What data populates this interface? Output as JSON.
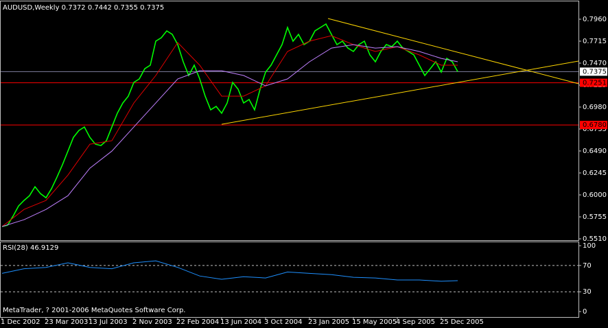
{
  "chart_data": [
    {
      "type": "line",
      "title": "AUDUSD,Weekly  0.7372 0.7442 0.7355 0.7375",
      "xlim": [
        -0.75,
        210
      ],
      "ylim": [
        0.5495,
        0.8159
      ],
      "yticks": [
        {
          "value": 0.796,
          "label": "0.7960"
        },
        0.7715,
        {
          "value": 0.747,
          "label": "0.7470"
        },
        0.7225,
        {
          "value": 0.698,
          "label": "0.6980"
        },
        0.6735,
        {
          "value": 0.649,
          "label": "0.6490"
        },
        0.6245,
        {
          "value": 0.6,
          "label": "0.6000"
        },
        0.5755,
        {
          "value": 0.551,
          "label": "0.5510"
        }
      ],
      "series": [
        {
          "color": "#00ff00",
          "x": [
            0,
            2,
            4,
            6,
            8,
            10,
            12,
            14,
            16,
            18,
            20,
            22,
            24,
            26,
            28,
            30,
            32,
            34,
            36,
            38,
            40,
            42,
            44,
            46,
            48,
            50,
            52,
            54,
            56,
            58,
            60,
            62,
            64,
            66,
            68,
            70,
            72,
            74,
            76,
            78,
            80,
            82,
            84,
            86,
            88,
            90,
            92,
            94,
            96,
            98,
            100,
            102,
            104,
            106,
            108,
            110,
            112,
            114,
            116,
            118,
            120,
            122,
            124,
            126,
            128,
            130,
            132,
            134,
            136,
            138,
            140,
            142,
            144,
            146,
            148,
            150,
            152,
            154,
            156,
            158,
            160,
            162,
            164,
            166
          ],
          "values": [
            0.5647,
            0.5662,
            0.5762,
            0.5876,
            0.5938,
            0.5991,
            0.6091,
            0.6014,
            0.5968,
            0.6068,
            0.6198,
            0.6336,
            0.6489,
            0.6642,
            0.6719,
            0.6757,
            0.6642,
            0.6566,
            0.6551,
            0.6604,
            0.6757,
            0.6911,
            0.7025,
            0.7102,
            0.7255,
            0.7294,
            0.7408,
            0.7447,
            0.7715,
            0.7753,
            0.783,
            0.7791,
            0.7677,
            0.7485,
            0.7332,
            0.7447,
            0.7294,
            0.7102,
            0.6949,
            0.6987,
            0.6911,
            0.7025,
            0.7255,
            0.7179,
            0.7025,
            0.7064,
            0.6949,
            0.7179,
            0.737,
            0.7447,
            0.7562,
            0.7677,
            0.7868,
            0.7715,
            0.7791,
            0.7677,
            0.7715,
            0.783,
            0.7868,
            0.7906,
            0.7791,
            0.7677,
            0.7715,
            0.7638,
            0.76,
            0.7677,
            0.7715,
            0.7562,
            0.7485,
            0.76,
            0.7677,
            0.7654,
            0.7715,
            0.7638,
            0.76,
            0.7562,
            0.7447,
            0.7332,
            0.7408,
            0.7485,
            0.737,
            0.7523,
            0.7485,
            0.7375
          ]
        },
        {
          "color": "#e00000",
          "x": [
            0,
            8,
            16,
            24,
            32,
            40,
            48,
            56,
            64,
            72,
            80,
            88,
            96,
            104,
            112,
            120,
            128,
            136,
            144,
            152,
            160,
            166
          ],
          "values": [
            0.5647,
            0.5838,
            0.5938,
            0.6221,
            0.6566,
            0.6604,
            0.7025,
            0.7332,
            0.77,
            0.7447,
            0.7102,
            0.7102,
            0.7217,
            0.76,
            0.7715,
            0.7776,
            0.7677,
            0.76,
            0.7654,
            0.7562,
            0.7447,
            0.7447
          ]
        },
        {
          "color": "#c080ff",
          "x": [
            0,
            8,
            16,
            24,
            32,
            40,
            48,
            56,
            64,
            72,
            80,
            88,
            96,
            104,
            112,
            120,
            128,
            136,
            144,
            152,
            160,
            166
          ],
          "values": [
            0.5647,
            0.5723,
            0.5838,
            0.5991,
            0.6298,
            0.6489,
            0.6757,
            0.7025,
            0.7294,
            0.7385,
            0.7385,
            0.7332,
            0.7217,
            0.7294,
            0.7485,
            0.7638,
            0.7677,
            0.7638,
            0.7654,
            0.76,
            0.7523,
            0.7485
          ]
        }
      ],
      "trendlines": [
        {
          "color": "#ffd700",
          "x": [
            118.75,
            210
          ],
          "y": [
            0.7968,
            0.724
          ]
        },
        {
          "color": "#ffd700",
          "x": [
            80,
            210
          ],
          "y": [
            0.6788,
            0.7493
          ]
        }
      ],
      "hlines": [
        {
          "value": 0.7375,
          "color": "#8080a0",
          "label_bg": "#ffffff"
        },
        {
          "value": 0.7251,
          "color": "#ff0000",
          "label_bg": "#ff0000"
        },
        {
          "value": 0.678,
          "label": "0.6780",
          "color": "#ff0000",
          "label_bg": "#ff0000"
        }
      ]
    },
    {
      "type": "line",
      "title": "RSI(28) 46.9129",
      "footer": "MetaTrader, ? 2001-2006 MetaQuotes Software Corp.",
      "xlim": [
        -0.75,
        210
      ],
      "ylim": [
        -8.3,
        106.3
      ],
      "yticks": [
        100,
        70,
        30,
        0
      ],
      "levels": [
        70,
        30
      ],
      "xticks": [
        {
          "value": 0,
          "label": "1 Dec 2002"
        },
        {
          "value": 16,
          "label": "23 Mar 2003"
        },
        {
          "value": 32,
          "label": "13 Jul 2003"
        },
        {
          "value": 48,
          "label": "2 Nov 2003"
        },
        {
          "value": 64,
          "label": "22 Feb 2004"
        },
        {
          "value": 80,
          "label": "13 Jun 2004"
        },
        {
          "value": 96,
          "label": "3 Oct 2004"
        },
        {
          "value": 112,
          "label": "23 Jan 2005"
        },
        {
          "value": 128,
          "label": "15 May 2005"
        },
        {
          "value": 144,
          "label": "4 Sep 2005"
        },
        {
          "value": 160,
          "label": "25 Dec 2005"
        }
      ],
      "series": [
        {
          "color": "#1e90ff",
          "x": [
            0,
            8,
            16,
            24,
            32,
            40,
            48,
            56,
            64,
            72,
            80,
            88,
            96,
            104,
            112,
            120,
            128,
            136,
            144,
            152,
            160,
            166
          ],
          "values": [
            58,
            65,
            67,
            74,
            67,
            65,
            74,
            77,
            67,
            54,
            49,
            53,
            51,
            60,
            58,
            56,
            52,
            51,
            48,
            48,
            46,
            46.9129
          ]
        }
      ]
    }
  ]
}
